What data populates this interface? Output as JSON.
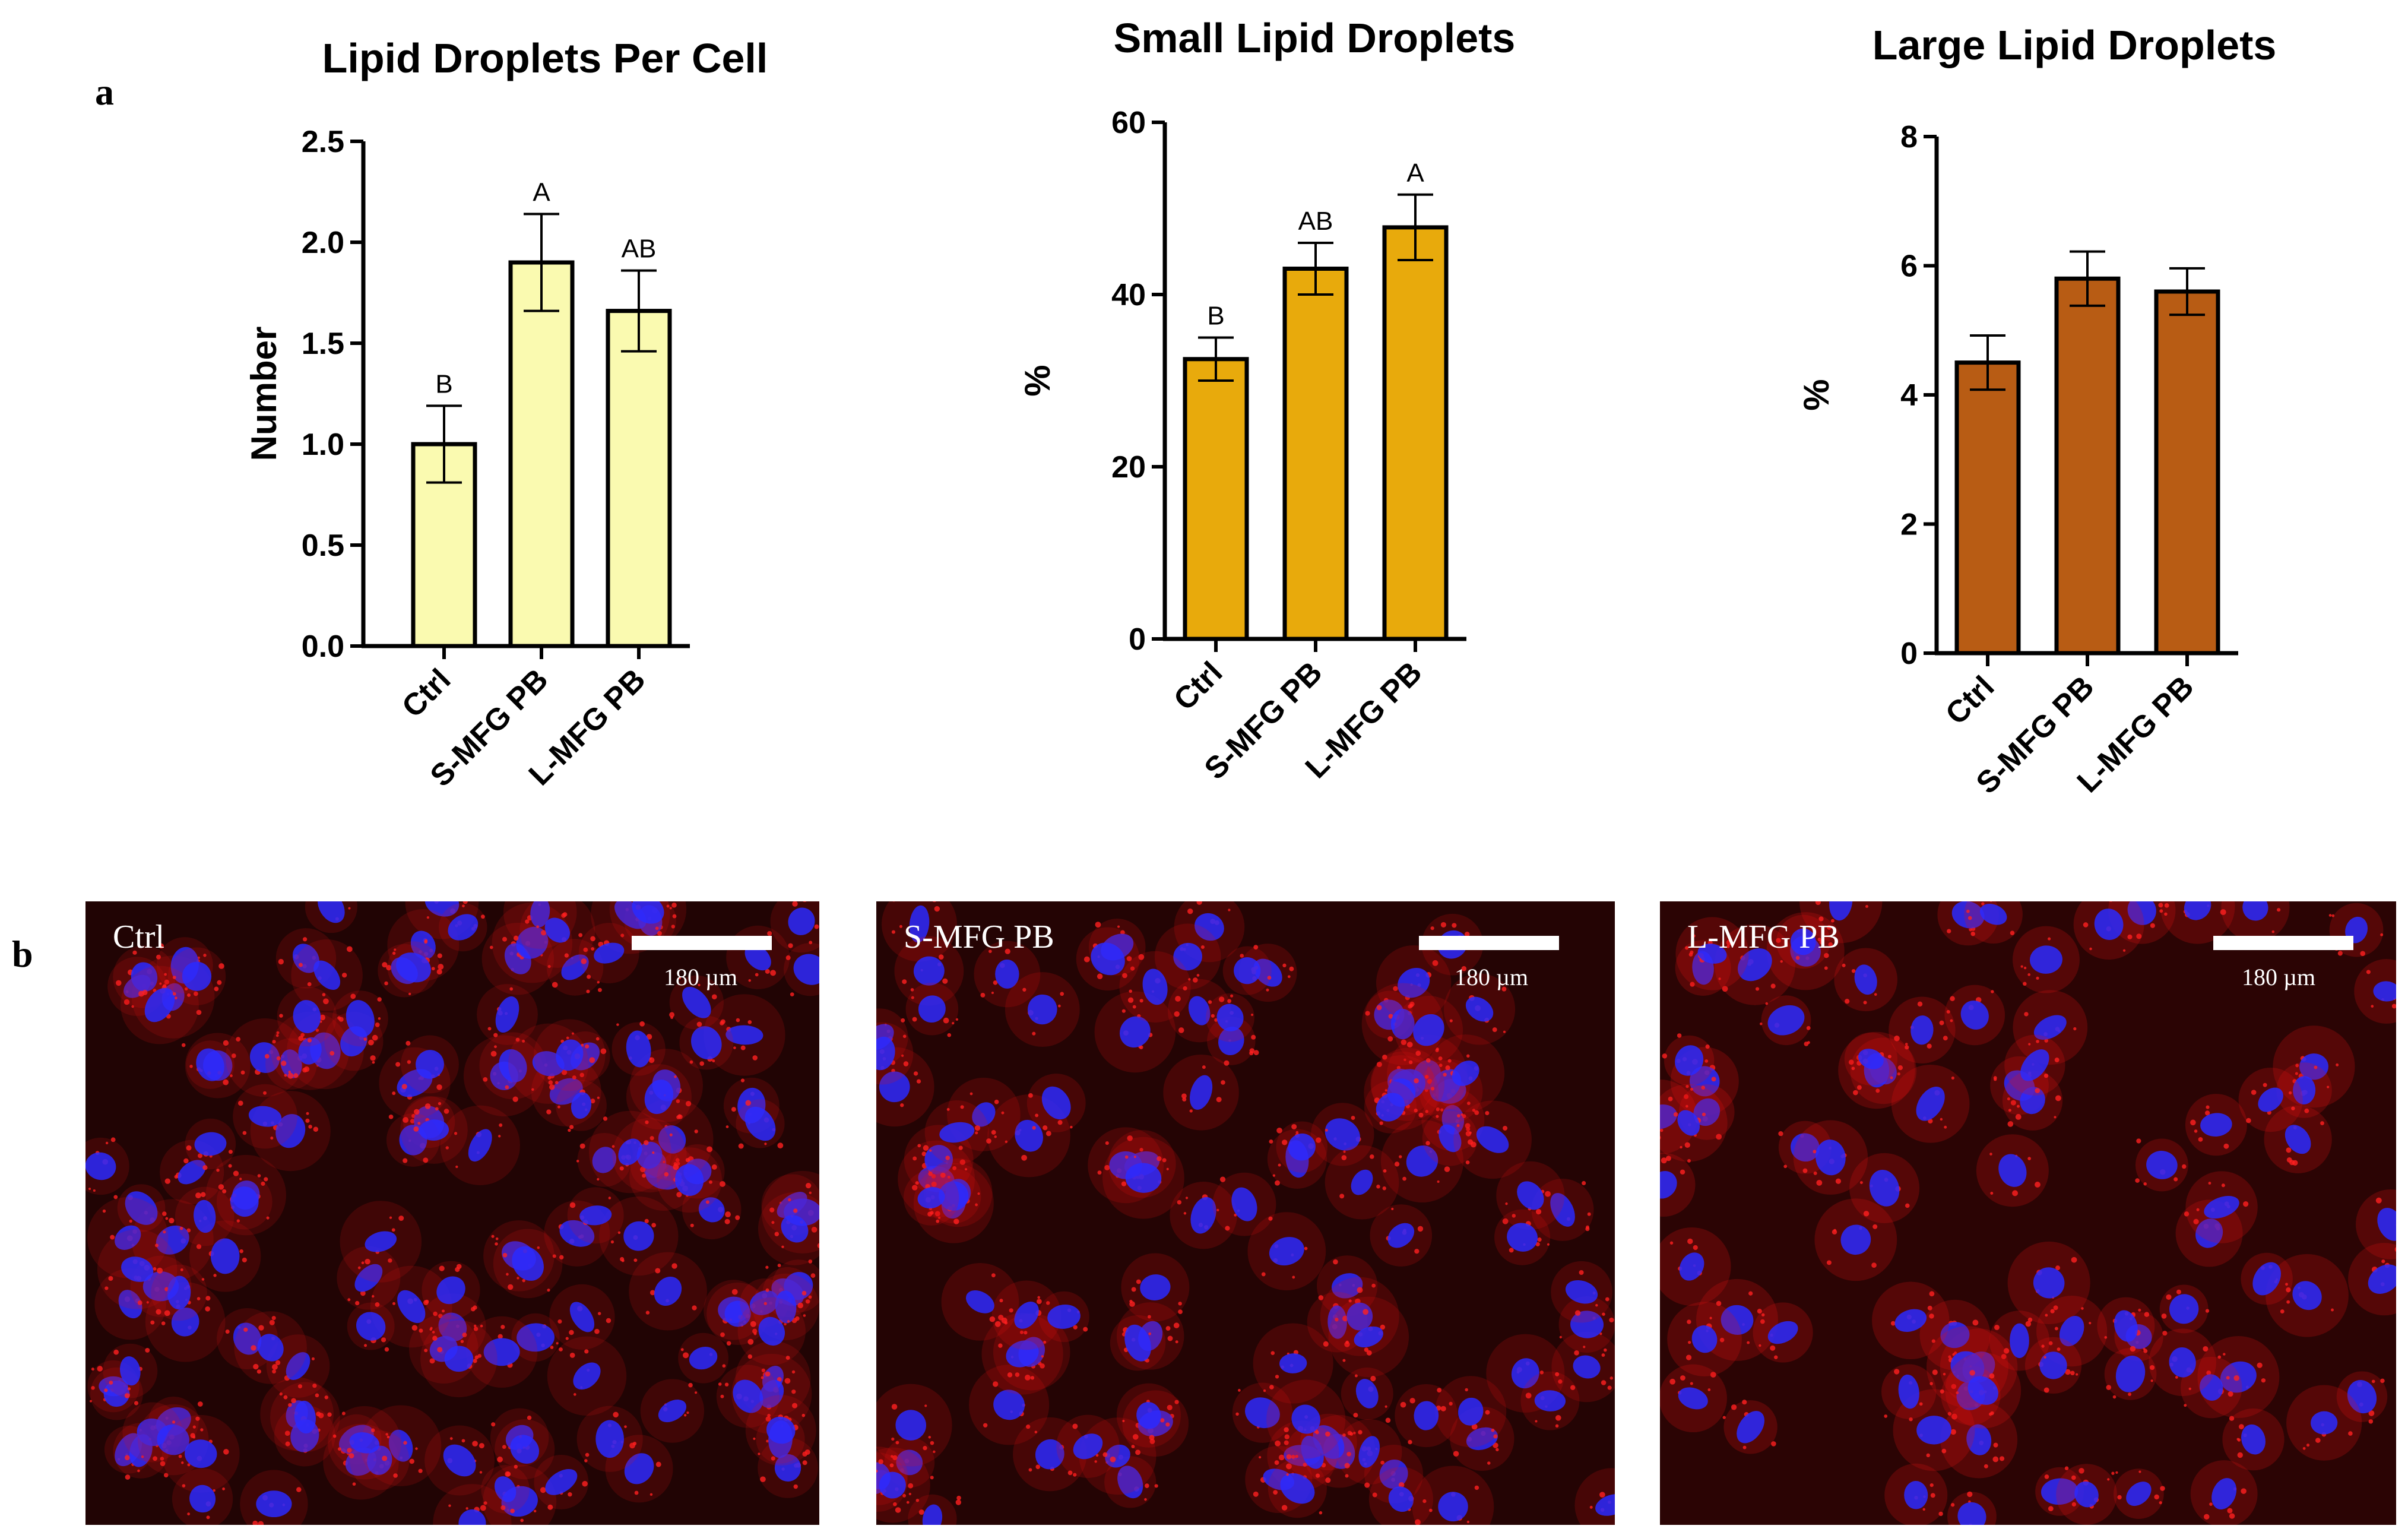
{
  "panel_labels": {
    "a": "a",
    "b": "b"
  },
  "chart_data": [
    {
      "type": "bar",
      "title": "Lipid Droplets Per Cell",
      "xlabel": "",
      "ylabel": "Number",
      "ylim": [
        0,
        2.5
      ],
      "yticks": [
        "0.0",
        "0.5",
        "1.0",
        "1.5",
        "2.0",
        "2.5"
      ],
      "categories": [
        "Ctrl",
        "S-MFG PB",
        "L-MFG PB"
      ],
      "values": [
        1.0,
        1.9,
        1.66
      ],
      "errors": [
        0.19,
        0.24,
        0.2
      ],
      "significance": [
        "B",
        "A",
        "AB"
      ],
      "bar_color": "#fafab0",
      "grid": false
    },
    {
      "type": "bar",
      "title": "Small Lipid Droplets",
      "xlabel": "",
      "ylabel": "%",
      "ylim": [
        0,
        60
      ],
      "yticks": [
        "0",
        "20",
        "40",
        "60"
      ],
      "categories": [
        "Ctrl",
        "S-MFG PB",
        "L-MFG PB"
      ],
      "values": [
        32.5,
        43,
        47.8
      ],
      "errors": [
        2.5,
        3,
        3.8
      ],
      "significance": [
        "B",
        "AB",
        "A"
      ],
      "bar_color": "#e8aa0c",
      "grid": false
    },
    {
      "type": "bar",
      "title": "Large Lipid Droplets",
      "xlabel": "",
      "ylabel": "%",
      "ylim": [
        0,
        8
      ],
      "yticks": [
        "0",
        "2",
        "4",
        "6",
        "8"
      ],
      "categories": [
        "Ctrl",
        "S-MFG PB",
        "L-MFG PB"
      ],
      "values": [
        4.5,
        5.8,
        5.6
      ],
      "errors": [
        0.42,
        0.42,
        0.36
      ],
      "significance": [
        "",
        "",
        ""
      ],
      "bar_color": "#b85c14",
      "grid": false
    }
  ],
  "micrographs": [
    {
      "label": "Ctrl",
      "scale_text": "180 µm"
    },
    {
      "label": "S-MFG PB",
      "scale_text": "180 µm"
    },
    {
      "label": "L-MFG PB",
      "scale_text": "180 µm"
    }
  ],
  "colors": {
    "nuclei": "#2a2aff",
    "lipid_stain": "#e01010",
    "background": "#1a0404"
  }
}
